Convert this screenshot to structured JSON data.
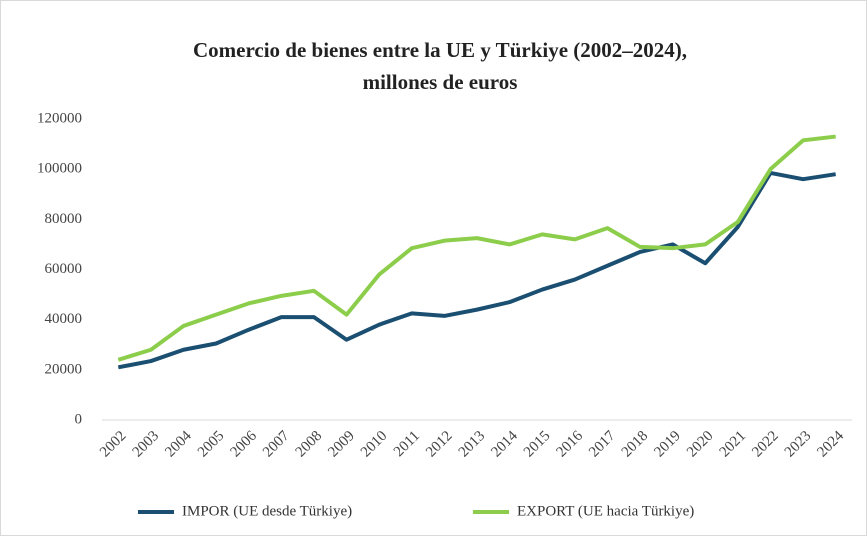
{
  "chart_data": {
    "type": "line",
    "title": "Comercio de bienes entre la UE y Türkiye (2002–2024),",
    "subtitle": "millones de euros",
    "categories": [
      "2002",
      "2003",
      "2004",
      "2005",
      "2006",
      "2007",
      "2008",
      "2009",
      "2010",
      "2011",
      "2012",
      "2013",
      "2014",
      "2015",
      "2016",
      "2017",
      "2018",
      "2019",
      "2020",
      "2021",
      "2022",
      "2023",
      "2024"
    ],
    "series": [
      {
        "name": "IMPOR (UE desde Türkiye)",
        "color": "#1b4f72",
        "values": [
          21000,
          23500,
          28000,
          30500,
          36000,
          41000,
          41000,
          32000,
          38000,
          42500,
          41500,
          44000,
          47000,
          52000,
          56000,
          61500,
          67000,
          70000,
          62500,
          77000,
          98500,
          96000,
          98000
        ]
      },
      {
        "name": "EXPORT (UE hacia Türkiye)",
        "color": "#8cce4b",
        "values": [
          24000,
          28000,
          37500,
          42000,
          46500,
          49500,
          51500,
          42000,
          58000,
          68500,
          71500,
          72500,
          70000,
          74000,
          72000,
          76500,
          69000,
          68500,
          70000,
          79000,
          100000,
          111500,
          113000
        ]
      }
    ],
    "ylim": [
      0,
      120000
    ],
    "yticks": [
      0,
      20000,
      40000,
      60000,
      80000,
      100000,
      120000
    ],
    "grid": false,
    "legend": "bottom"
  }
}
